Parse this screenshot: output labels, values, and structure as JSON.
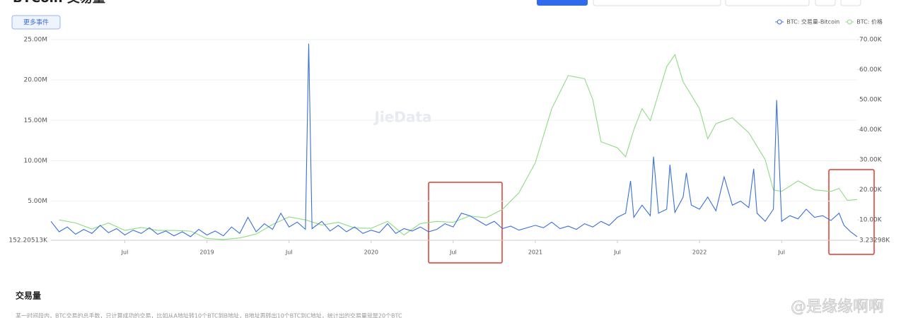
{
  "header": {
    "title": "BTCoin 交易量",
    "button": "更多事件"
  },
  "watermark": "JieData",
  "chart_data": {
    "type": "line",
    "legend": "top-right",
    "xlim": [
      2018.05,
      2022.96
    ],
    "xticks": [
      {
        "value": 2018.5,
        "label": "Jul"
      },
      {
        "value": 2019,
        "label": "2019"
      },
      {
        "value": 2019.5,
        "label": "Jul"
      },
      {
        "value": 2020,
        "label": "2020"
      },
      {
        "value": 2020.5,
        "label": "Jul"
      },
      {
        "value": 2021,
        "label": "2021"
      },
      {
        "value": 2021.5,
        "label": "Jul"
      },
      {
        "value": 2022,
        "label": "2022"
      },
      {
        "value": 2022.5,
        "label": "Jul"
      }
    ],
    "ylim": [
      152205.13,
      25000000
    ],
    "yticks": [
      {
        "value": 152205.13,
        "label": "152.20513K"
      },
      {
        "value": 5000000,
        "label": "5.00M"
      },
      {
        "value": 10000000,
        "label": "10.00M"
      },
      {
        "value": 15000000,
        "label": "15.00M"
      },
      {
        "value": 20000000,
        "label": "20.00M"
      },
      {
        "value": 25000000,
        "label": "25.00M"
      }
    ],
    "y2lim": [
      3232.98,
      70000
    ],
    "y2ticks": [
      {
        "value": 3232.98,
        "label": "3.23298K"
      },
      {
        "value": 10000,
        "label": "10.00K"
      },
      {
        "value": 20000,
        "label": "20.00K"
      },
      {
        "value": 30000,
        "label": "30.00K"
      },
      {
        "value": 40000,
        "label": "40.00K"
      },
      {
        "value": 50000,
        "label": "50.00K"
      },
      {
        "value": 60000,
        "label": "60.00K"
      },
      {
        "value": 70000,
        "label": "70.00K"
      }
    ],
    "grid": true,
    "series": [
      {
        "name": "BTC: 交易量-Bitcoin",
        "color": "#3a6fd8",
        "axis": "y",
        "x": [
          2018.05,
          2018.1,
          2018.15,
          2018.2,
          2018.25,
          2018.3,
          2018.35,
          2018.4,
          2018.45,
          2018.5,
          2018.55,
          2018.6,
          2018.65,
          2018.7,
          2018.75,
          2018.8,
          2018.85,
          2018.9,
          2018.95,
          2019.0,
          2019.05,
          2019.1,
          2019.15,
          2019.2,
          2019.25,
          2019.3,
          2019.35,
          2019.4,
          2019.45,
          2019.5,
          2019.55,
          2019.6,
          2019.62,
          2019.64,
          2019.7,
          2019.75,
          2019.8,
          2019.85,
          2019.9,
          2019.95,
          2020.0,
          2020.05,
          2020.1,
          2020.15,
          2020.2,
          2020.25,
          2020.3,
          2020.35,
          2020.4,
          2020.45,
          2020.5,
          2020.55,
          2020.6,
          2020.65,
          2020.7,
          2020.75,
          2020.8,
          2020.85,
          2020.9,
          2021.0,
          2021.05,
          2021.1,
          2021.15,
          2021.2,
          2021.25,
          2021.3,
          2021.35,
          2021.4,
          2021.45,
          2021.5,
          2021.55,
          2021.58,
          2021.6,
          2021.65,
          2021.7,
          2021.72,
          2021.75,
          2021.8,
          2021.82,
          2021.85,
          2021.9,
          2021.92,
          2021.95,
          2022.0,
          2022.05,
          2022.1,
          2022.15,
          2022.2,
          2022.25,
          2022.3,
          2022.33,
          2022.35,
          2022.4,
          2022.45,
          2022.47,
          2022.5,
          2022.55,
          2022.6,
          2022.65,
          2022.7,
          2022.75,
          2022.8,
          2022.85,
          2022.88,
          2022.92,
          2022.96
        ],
        "values": [
          2500000,
          1200000,
          1800000,
          900000,
          1500000,
          1000000,
          2000000,
          1100000,
          1600000,
          800000,
          1400000,
          1000000,
          1700000,
          900000,
          1300000,
          700000,
          1200000,
          600000,
          1500000,
          800000,
          1300000,
          700000,
          1800000,
          1000000,
          3000000,
          1200000,
          2200000,
          1500000,
          3500000,
          1800000,
          2400000,
          1500000,
          24500000,
          1600000,
          2500000,
          1300000,
          2000000,
          1200000,
          1800000,
          1000000,
          1400000,
          1100000,
          2200000,
          1000000,
          1600000,
          1300000,
          1800000,
          1200000,
          1500000,
          2200000,
          1800000,
          3500000,
          3200000,
          2600000,
          2000000,
          2500000,
          1600000,
          1900000,
          1400000,
          2000000,
          1700000,
          2400000,
          1600000,
          1900000,
          1500000,
          2200000,
          1800000,
          2500000,
          2000000,
          3000000,
          3500000,
          7500000,
          3000000,
          4500000,
          3200000,
          10500000,
          3500000,
          4000000,
          9500000,
          3600000,
          5500000,
          8500000,
          4500000,
          4000000,
          5500000,
          3800000,
          8000000,
          4500000,
          5000000,
          4200000,
          9000000,
          3500000,
          2500000,
          4000000,
          17500000,
          2500000,
          3200000,
          2800000,
          4000000,
          3000000,
          3200000,
          2600000,
          3500000,
          2000000,
          1200000,
          600000
        ]
      },
      {
        "name": "BTC: 价格",
        "color": "#8fdc84",
        "axis": "y2",
        "x": [
          2018.1,
          2018.2,
          2018.3,
          2018.4,
          2018.5,
          2018.6,
          2018.7,
          2018.8,
          2018.9,
          2019.0,
          2019.1,
          2019.2,
          2019.3,
          2019.4,
          2019.5,
          2019.6,
          2019.7,
          2019.8,
          2019.9,
          2020.0,
          2020.1,
          2020.2,
          2020.3,
          2020.4,
          2020.5,
          2020.6,
          2020.7,
          2020.8,
          2020.9,
          2021.0,
          2021.05,
          2021.1,
          2021.2,
          2021.3,
          2021.35,
          2021.4,
          2021.5,
          2021.55,
          2021.6,
          2021.65,
          2021.7,
          2021.8,
          2021.85,
          2021.9,
          2022.0,
          2022.05,
          2022.1,
          2022.2,
          2022.3,
          2022.4,
          2022.45,
          2022.5,
          2022.6,
          2022.7,
          2022.8,
          2022.85,
          2022.9,
          2022.96
        ],
        "values": [
          10000,
          9000,
          7000,
          9000,
          6500,
          7500,
          6500,
          6500,
          6300,
          3800,
          3500,
          4000,
          5300,
          8500,
          11000,
          10000,
          8300,
          9200,
          7300,
          7200,
          9500,
          5000,
          8800,
          9500,
          9200,
          11300,
          10700,
          13500,
          19000,
          29000,
          38000,
          47000,
          58000,
          57000,
          50000,
          36000,
          34000,
          31000,
          40000,
          47000,
          43000,
          61000,
          65000,
          56000,
          47000,
          37000,
          42000,
          44000,
          39000,
          30000,
          20000,
          19500,
          23000,
          20000,
          19500,
          20500,
          16500,
          16800
        ]
      }
    ]
  },
  "section": {
    "heading": "交易量",
    "description": "某一时间段内，BTC交易的总手数，只计算成功的交易，比如从A地址转10个BTC到B地址，B地址再转出10个BTC到C地址，统计出的交易量就是20个BTC",
    "credit": "@是缘缘啊啊"
  }
}
